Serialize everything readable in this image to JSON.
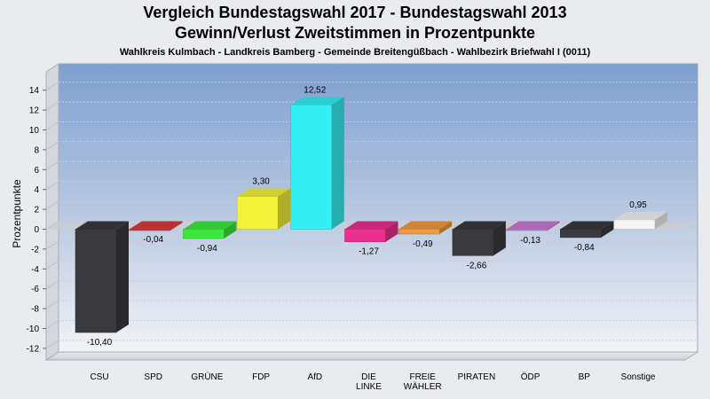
{
  "chart_data": {
    "type": "bar",
    "title": "Vergleich Bundestagswahl 2017 - Bundestagswahl 2013",
    "title2": "Gewinn/Verlust Zweitstimmen in Prozentpunkte",
    "subtitle": "Wahlkreis Kulmbach - Landkreis Bamberg - Gemeinde Breitengüßbach - Wahlbezirk Briefwahl I (0011)",
    "ylabel": "Prozentpunkte",
    "xlabel": "",
    "ylim": [
      -13,
      15
    ],
    "yticks": [
      14,
      12,
      10,
      8,
      6,
      4,
      2,
      0,
      -2,
      -4,
      -6,
      -8,
      -10,
      -12
    ],
    "grid": true,
    "categories": [
      {
        "name": [
          "CSU"
        ],
        "value": -10.4,
        "label": "-10,40",
        "color": "#3a3a3e"
      },
      {
        "name": [
          "SPD"
        ],
        "value": -0.04,
        "label": "-0,04",
        "color": "#d93a3a"
      },
      {
        "name": [
          "GRÜNE"
        ],
        "value": -0.94,
        "label": "-0,94",
        "color": "#3de83d"
      },
      {
        "name": [
          "FDP"
        ],
        "value": 3.3,
        "label": "3,30",
        "color": "#f2f23a"
      },
      {
        "name": [
          "AfD"
        ],
        "value": 12.52,
        "label": "12,52",
        "color": "#33f0f5"
      },
      {
        "name": [
          "DIE",
          "LINKE"
        ],
        "value": -1.27,
        "label": "-1,27",
        "color": "#ea2f8e"
      },
      {
        "name": [
          "FREIE",
          "WÄHLER"
        ],
        "value": -0.49,
        "label": "-0,49",
        "color": "#f09a3a"
      },
      {
        "name": [
          "PIRATEN"
        ],
        "value": -2.66,
        "label": "-2,66",
        "color": "#3a3a3e"
      },
      {
        "name": [
          "ÖDP"
        ],
        "value": -0.13,
        "label": "-0,13",
        "color": "#c77ad4"
      },
      {
        "name": [
          "BP"
        ],
        "value": -0.84,
        "label": "-0,84",
        "color": "#3a3a3e"
      },
      {
        "name": [
          "Sonstige"
        ],
        "value": 0.95,
        "label": "0,95",
        "color": "#f4f4f4"
      }
    ]
  }
}
